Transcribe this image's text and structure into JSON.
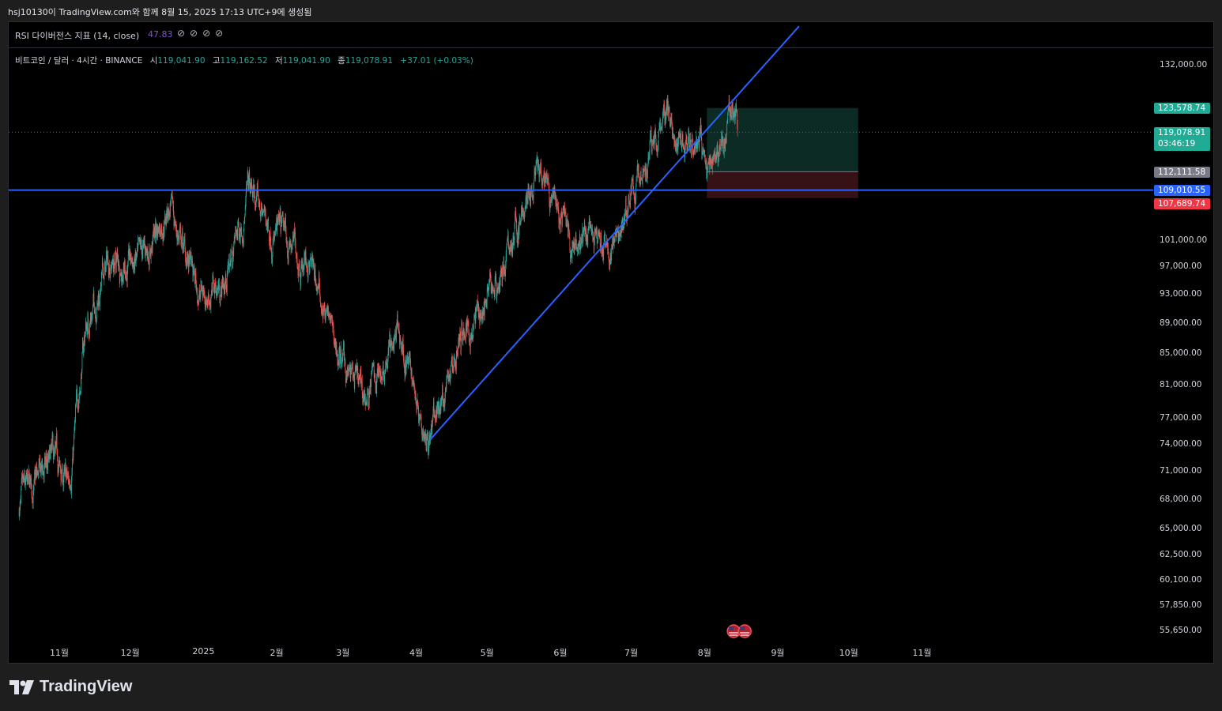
{
  "header": {
    "caption": "hsj10130이 TradingView.com와 함께 8월 15, 2025 17:13 UTC+9에 생성됨"
  },
  "indicator": {
    "name": "RSI 다이버전스 지표 (14, close)",
    "value": "47.83",
    "null_icons": "⊘⊘⊘⊘"
  },
  "legend": {
    "symbol": "비트코인 / 달러 · 4시간 · BINANCE",
    "open_label": "시",
    "open": "119,041.90",
    "high_label": "고",
    "high": "119,162.52",
    "low_label": "저",
    "low": "119,041.90",
    "close_label": "종",
    "close": "119,078.91",
    "change": "+37.01 (+0.03%)"
  },
  "price_tags": {
    "target": "123,578.74",
    "current": "119,078.91",
    "countdown": "03:46:19",
    "entry": "112,111.58",
    "horizontal_line": "109,010.55",
    "stop": "107,689.74"
  },
  "chart_data": {
    "type": "candlestick",
    "symbol": "BTCUSD",
    "interval": "4h",
    "exchange": "BINANCE",
    "scale": "log",
    "y_ticks": [
      "132,000.00",
      "101,000.00",
      "97,000.00",
      "93,000.00",
      "89,000.00",
      "85,000.00",
      "81,000.00",
      "77,000.00",
      "74,000.00",
      "71,000.00",
      "68,000.00",
      "65,000.00",
      "62,500.00",
      "60,100.00",
      "57,850.00",
      "55,650.00"
    ],
    "x_ticks": [
      "11월",
      "12월",
      "2025",
      "2월",
      "3월",
      "4월",
      "5월",
      "6월",
      "7월",
      "8월",
      "9월",
      "10월",
      "11월"
    ],
    "price_path": [
      {
        "date": "2024-10-15",
        "close": 67000
      },
      {
        "date": "2024-10-29",
        "close": 72000
      },
      {
        "date": "2024-11-05",
        "close": 69000
      },
      {
        "date": "2024-11-12",
        "close": 88000
      },
      {
        "date": "2024-11-22",
        "close": 98000
      },
      {
        "date": "2024-12-05",
        "close": 97000
      },
      {
        "date": "2024-12-17",
        "close": 106500
      },
      {
        "date": "2024-12-30",
        "close": 93000
      },
      {
        "date": "2025-01-10",
        "close": 94500
      },
      {
        "date": "2025-01-20",
        "close": 109000
      },
      {
        "date": "2025-01-31",
        "close": 102000
      },
      {
        "date": "2025-02-15",
        "close": 97500
      },
      {
        "date": "2025-02-28",
        "close": 84000
      },
      {
        "date": "2025-03-10",
        "close": 79000
      },
      {
        "date": "2025-03-24",
        "close": 88000
      },
      {
        "date": "2025-04-07",
        "close": 75000
      },
      {
        "date": "2025-04-20",
        "close": 87000
      },
      {
        "date": "2025-05-05",
        "close": 94500
      },
      {
        "date": "2025-05-22",
        "close": 111000
      },
      {
        "date": "2025-06-05",
        "close": 101500
      },
      {
        "date": "2025-06-22",
        "close": 99000
      },
      {
        "date": "2025-07-03",
        "close": 109500
      },
      {
        "date": "2025-07-14",
        "close": 122000
      },
      {
        "date": "2025-07-31",
        "close": 116000
      },
      {
        "date": "2025-08-02",
        "close": 112500
      },
      {
        "date": "2025-08-14",
        "close": 123500
      },
      {
        "date": "2025-08-15",
        "close": 119078.91
      }
    ],
    "trendline": {
      "start": {
        "date": "2025-04-07",
        "price": 74500
      },
      "end": {
        "date": "2025-09-10",
        "price": 140000
      }
    },
    "horizontal_line": 109010.55,
    "position": {
      "entry": 112111.58,
      "target": 123578.74,
      "stop": 107689.74,
      "start_date": "2025-08-02",
      "end_date": "2025-10-05"
    },
    "colors": {
      "up": "#26a69a",
      "down": "#ef5350",
      "line": "#2962ff",
      "target_zone": "#0c2b24",
      "stop_zone": "#361217"
    }
  },
  "footer": {
    "brand": "TradingView"
  }
}
